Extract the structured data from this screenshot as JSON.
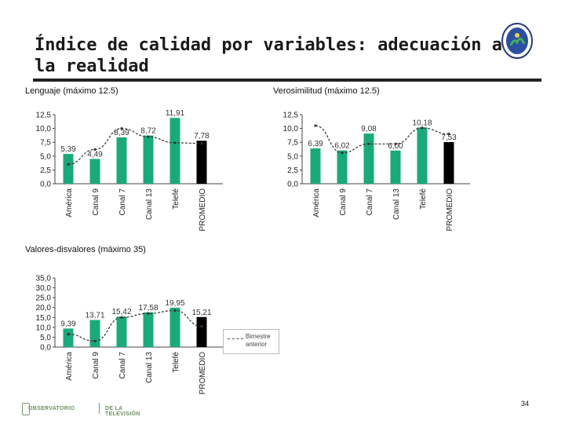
{
  "title": "Índice de calidad por variables: adecuación a la realidad",
  "colors": {
    "bar": "#1aaa78",
    "bar_promedio": "#000000",
    "line": "#333333"
  },
  "legend": {
    "label": "Bimestre anterior"
  },
  "footer": {
    "logo_left": "OBSERVATORIO",
    "logo_right": "DE LA TELEVISIÓN",
    "page_number": "34"
  },
  "chart_data": [
    {
      "type": "bar",
      "title": "Lenguaje (máximo 12.5)",
      "categories": [
        "América",
        "Canal 9",
        "Canal 7",
        "Canal 13",
        "Telefé",
        "PROMEDIO"
      ],
      "values": [
        5.39,
        4.49,
        8.39,
        8.72,
        11.91,
        7.78
      ],
      "data_labels": [
        "5,39",
        "4,49",
        "8,39",
        "8,72",
        "11,91",
        "7,78"
      ],
      "previous_period": [
        3.5,
        6.2,
        10.0,
        8.5,
        7.4,
        7.3
      ],
      "ylim": [
        0,
        12.5
      ],
      "yticks": [
        "0,0",
        "2,5",
        "5,0",
        "7,5",
        "10,0",
        "12,5"
      ],
      "grid": false
    },
    {
      "type": "bar",
      "title": "Verosimilitud (máximo 12.5)",
      "categories": [
        "América",
        "Canal 9",
        "Canal 7",
        "Canal 13",
        "Telefé",
        "PROMEDIO"
      ],
      "values": [
        6.39,
        6.02,
        9.08,
        6.0,
        10.18,
        7.53
      ],
      "data_labels": [
        "6,39",
        "6,02",
        "9,08",
        "6,00",
        "10,18",
        "7,53"
      ],
      "previous_period": [
        10.5,
        5.6,
        7.2,
        7.2,
        10.1,
        9.0
      ],
      "ylim": [
        0,
        12.5
      ],
      "yticks": [
        "0,0",
        "2,5",
        "5,0",
        "7,5",
        "10,0",
        "12,5"
      ],
      "grid": false
    },
    {
      "type": "bar",
      "title": "Valores-disvalores (máximo 35)",
      "categories": [
        "América",
        "Canal 9",
        "Canal 7",
        "Canal 13",
        "Telefé",
        "PROMEDIO"
      ],
      "values": [
        9.39,
        13.71,
        15.42,
        17.58,
        19.95,
        15.21
      ],
      "data_labels": [
        "9,39",
        "13,71",
        "15,42",
        "17,58",
        "19,95",
        "15,21"
      ],
      "previous_period": [
        6.5,
        3.0,
        15.0,
        17.0,
        18.5,
        10.5
      ],
      "ylim": [
        0,
        35
      ],
      "yticks": [
        "0,0",
        "5,0",
        "10,0",
        "15,0",
        "20,0",
        "25,0",
        "30,0",
        "35,0"
      ],
      "grid": false,
      "legend_position": "right"
    }
  ]
}
